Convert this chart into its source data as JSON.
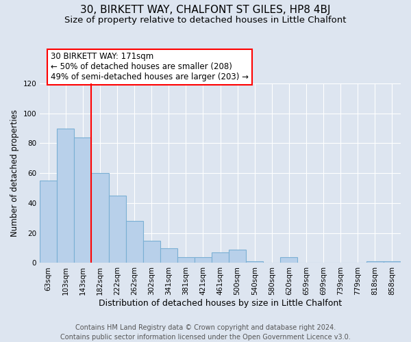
{
  "title": "30, BIRKETT WAY, CHALFONT ST GILES, HP8 4BJ",
  "subtitle": "Size of property relative to detached houses in Little Chalfont",
  "xlabel": "Distribution of detached houses by size in Little Chalfont",
  "ylabel": "Number of detached properties",
  "bar_labels": [
    "63sqm",
    "103sqm",
    "143sqm",
    "182sqm",
    "222sqm",
    "262sqm",
    "302sqm",
    "341sqm",
    "381sqm",
    "421sqm",
    "461sqm",
    "500sqm",
    "540sqm",
    "580sqm",
    "620sqm",
    "659sqm",
    "699sqm",
    "739sqm",
    "779sqm",
    "818sqm",
    "858sqm"
  ],
  "bar_values": [
    55,
    90,
    84,
    60,
    45,
    28,
    15,
    10,
    4,
    4,
    7,
    9,
    1,
    0,
    4,
    0,
    0,
    0,
    0,
    1,
    1
  ],
  "bar_color": "#b8d0ea",
  "bar_edge_color": "#7aafd4",
  "background_color": "#dde5f0",
  "grid_color": "#ffffff",
  "vline_x": 2.5,
  "vline_color": "red",
  "annotation_text": "30 BIRKETT WAY: 171sqm\n← 50% of detached houses are smaller (208)\n49% of semi-detached houses are larger (203) →",
  "annotation_box_color": "white",
  "annotation_box_edge_color": "red",
  "ylim": [
    0,
    120
  ],
  "yticks": [
    0,
    20,
    40,
    60,
    80,
    100,
    120
  ],
  "footer_text": "Contains HM Land Registry data © Crown copyright and database right 2024.\nContains public sector information licensed under the Open Government Licence v3.0.",
  "title_fontsize": 11,
  "subtitle_fontsize": 9.5,
  "xlabel_fontsize": 9,
  "ylabel_fontsize": 8.5,
  "tick_fontsize": 7.5,
  "footer_fontsize": 7
}
